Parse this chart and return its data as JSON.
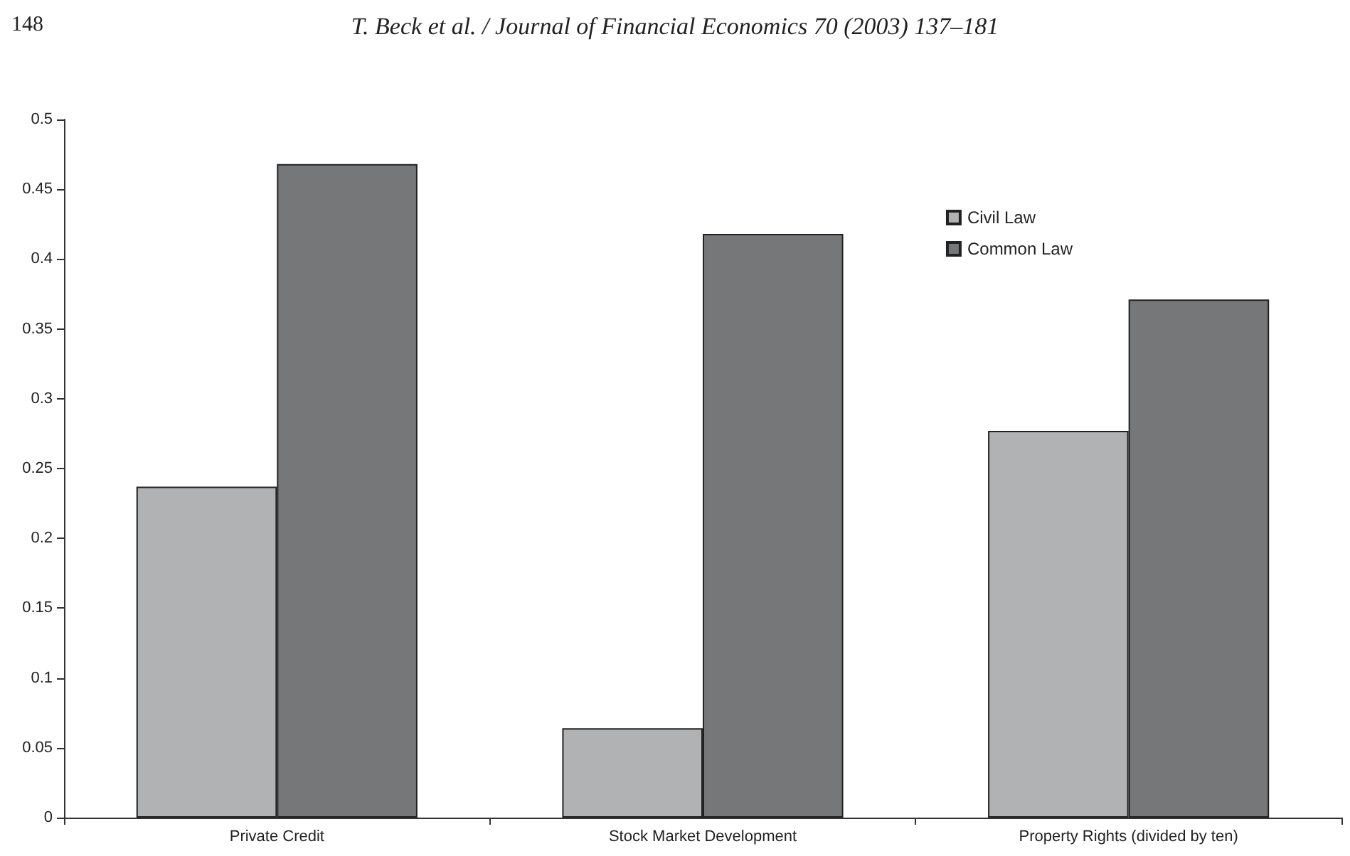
{
  "chart_data": {
    "type": "bar",
    "annotations": [
      "148",
      "T. Beck et al. / Journal of Financial Economics 70 (2003) 137–181"
    ],
    "categories": [
      "Private Credit",
      "Stock Market Development",
      "Property Rights (divided by ten)"
    ],
    "series": [
      {
        "name": "Civil Law",
        "color": "#b1b2b4",
        "values": [
          0.237,
          0.064,
          0.277
        ]
      },
      {
        "name": "Common Law",
        "color": "#767779",
        "values": [
          0.468,
          0.418,
          0.371
        ]
      }
    ],
    "ylim": [
      0,
      0.5
    ],
    "yticks": [
      0,
      0.05,
      0.1,
      0.15,
      0.2,
      0.25,
      0.3,
      0.35,
      0.4,
      0.45,
      0.5
    ],
    "grid": false,
    "legend": "top right"
  }
}
